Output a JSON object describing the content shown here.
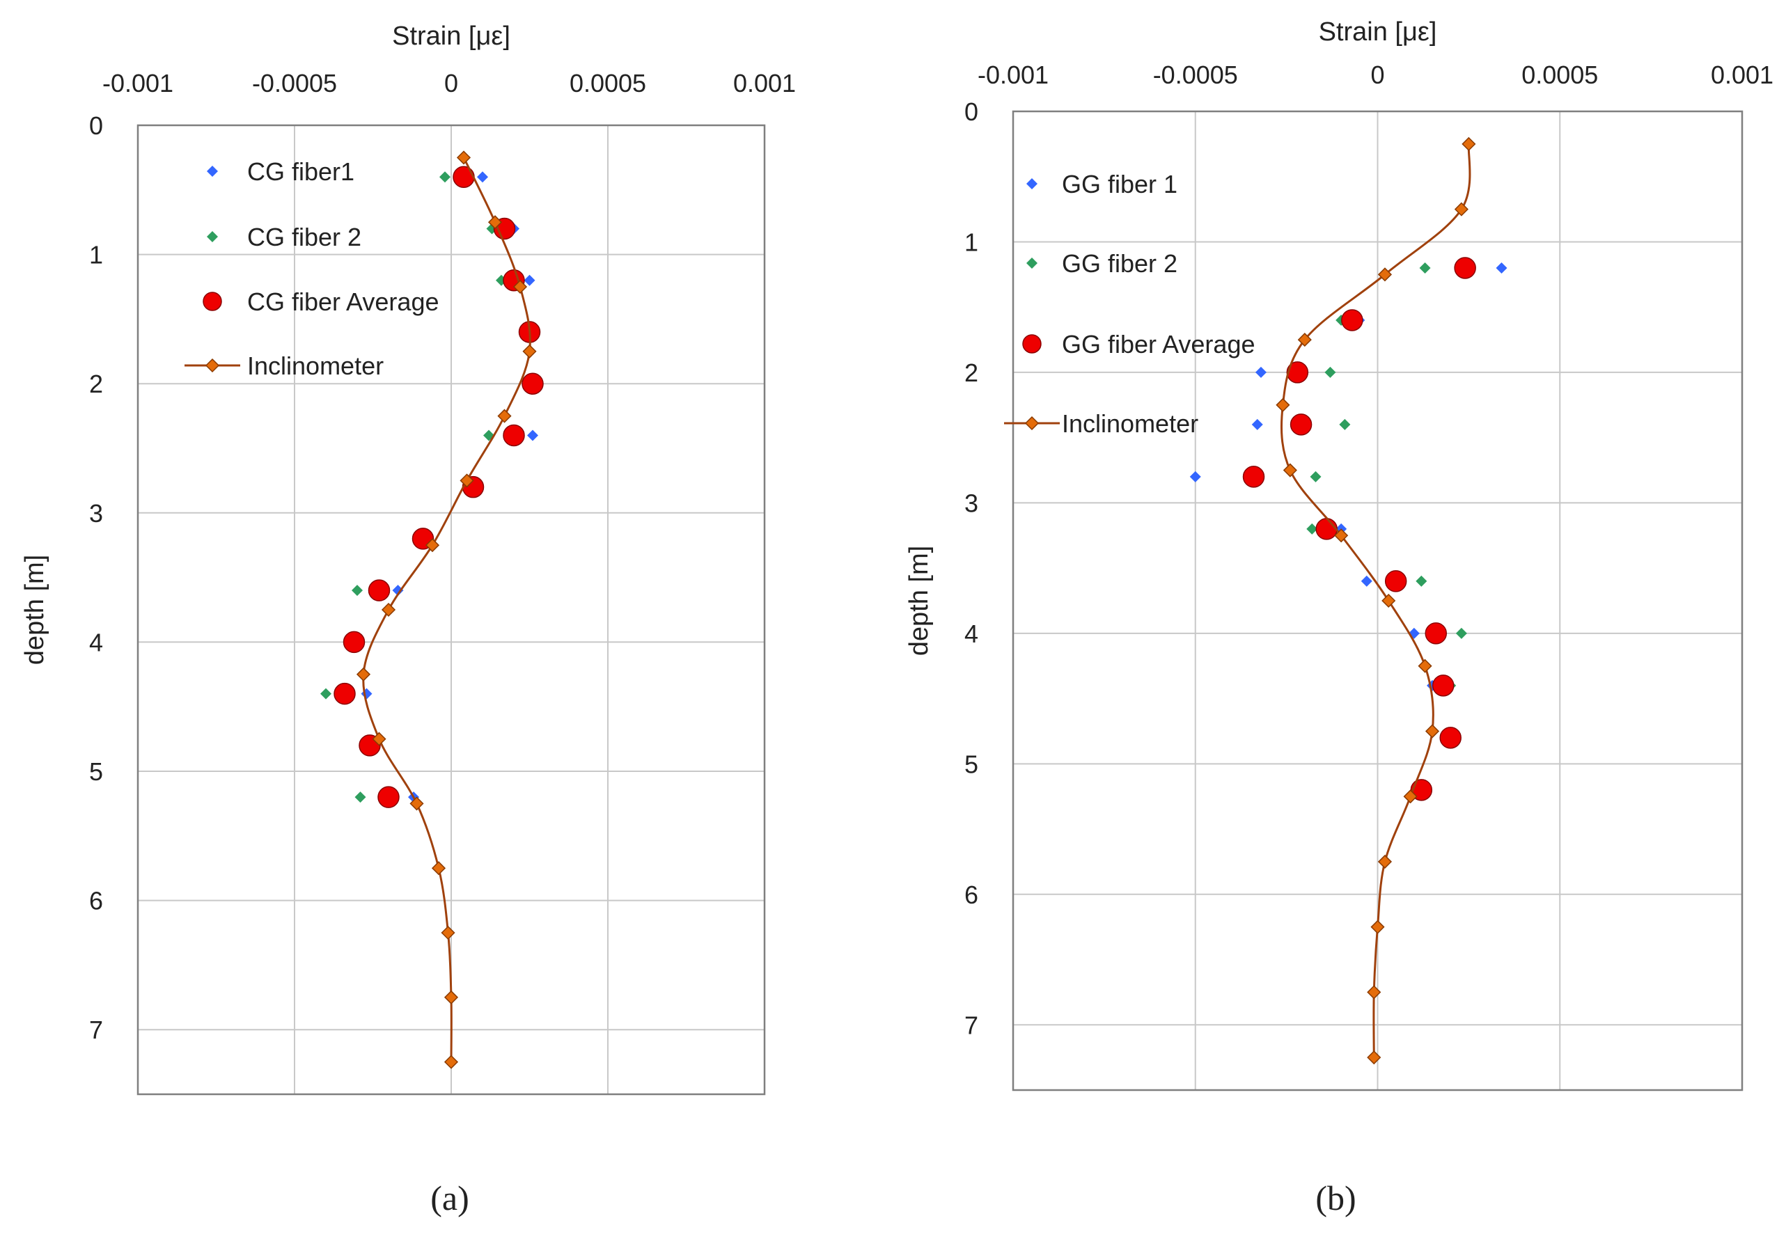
{
  "chart_data": [
    {
      "type": "scatter",
      "panel_label": "(a)",
      "x_axis": {
        "title": "Strain [με]",
        "position": "top",
        "range": [
          -0.001,
          0.001
        ],
        "ticks": [
          -0.001,
          -0.0005,
          0,
          0.0005,
          0.001
        ],
        "tick_labels": [
          "-0.001",
          "-0.0005",
          "0",
          "0.0005",
          "0.001"
        ]
      },
      "y_axis": {
        "title": "depth [m]",
        "reversed": true,
        "range": [
          0,
          7.5
        ],
        "ticks": [
          0,
          1,
          2,
          3,
          4,
          5,
          6,
          7
        ],
        "tick_labels": [
          "0",
          "1",
          "2",
          "3",
          "4",
          "5",
          "6",
          "7"
        ]
      },
      "grid": true,
      "legend_position": "top-left",
      "series": [
        {
          "name": "CG fiber1",
          "marker": "diamond",
          "color": "#3366ff",
          "points": [
            [
              0.0001,
              0.4
            ],
            [
              0.0002,
              0.8
            ],
            [
              0.00025,
              1.2
            ],
            [
              0.00026,
              2.4
            ],
            [
              -0.00017,
              3.6
            ],
            [
              -0.00027,
              4.4
            ],
            [
              -0.00012,
              5.2
            ]
          ]
        },
        {
          "name": "CG fiber 2",
          "marker": "diamond",
          "color": "#2e9e5e",
          "points": [
            [
              -2e-05,
              0.4
            ],
            [
              0.00013,
              0.8
            ],
            [
              0.00016,
              1.2
            ],
            [
              0.00012,
              2.4
            ],
            [
              -0.0003,
              3.6
            ],
            [
              -0.0004,
              4.4
            ],
            [
              -0.00029,
              5.2
            ]
          ]
        },
        {
          "name": "CG fiber Average",
          "marker": "circle",
          "color": "#ee0000",
          "points": [
            [
              4e-05,
              0.4
            ],
            [
              0.00017,
              0.8
            ],
            [
              0.0002,
              1.2
            ],
            [
              0.00025,
              1.6
            ],
            [
              0.00026,
              2.0
            ],
            [
              0.0002,
              2.4
            ],
            [
              7e-05,
              2.8
            ],
            [
              -9e-05,
              3.2
            ],
            [
              -0.00023,
              3.6
            ],
            [
              -0.00031,
              4.0
            ],
            [
              -0.00034,
              4.4
            ],
            [
              -0.00026,
              4.8
            ],
            [
              -0.0002,
              5.2
            ]
          ]
        },
        {
          "name": "Inclinometer",
          "marker": "diamond-line",
          "color": "#e46c0a",
          "line_color": "#a0410d",
          "points": [
            [
              4e-05,
              0.25
            ],
            [
              0.00014,
              0.75
            ],
            [
              0.00022,
              1.25
            ],
            [
              0.00025,
              1.75
            ],
            [
              0.00017,
              2.25
            ],
            [
              5e-05,
              2.75
            ],
            [
              -6e-05,
              3.25
            ],
            [
              -0.0002,
              3.75
            ],
            [
              -0.00028,
              4.25
            ],
            [
              -0.00023,
              4.75
            ],
            [
              -0.00011,
              5.25
            ],
            [
              -4e-05,
              5.75
            ],
            [
              -1e-05,
              6.25
            ],
            [
              0.0,
              6.75
            ],
            [
              0.0,
              7.25
            ]
          ]
        }
      ]
    },
    {
      "type": "scatter",
      "panel_label": "(b)",
      "x_axis": {
        "title": "Strain [με]",
        "position": "top",
        "range": [
          -0.001,
          0.001
        ],
        "ticks": [
          -0.001,
          -0.0005,
          0,
          0.0005,
          0.001
        ],
        "tick_labels": [
          "-0.001",
          "-0.0005",
          "0",
          "0.0005",
          "0.001"
        ]
      },
      "y_axis": {
        "title": "depth  [m]",
        "reversed": true,
        "range": [
          0,
          7.5
        ],
        "ticks": [
          0,
          1,
          2,
          3,
          4,
          5,
          6,
          7
        ],
        "tick_labels": [
          "0",
          "1",
          "2",
          "3",
          "4",
          "5",
          "6",
          "7"
        ]
      },
      "grid": true,
      "legend_position": "top-left",
      "series": [
        {
          "name": "GG fiber 1",
          "marker": "diamond",
          "color": "#3366ff",
          "points": [
            [
              0.00034,
              1.2
            ],
            [
              -5e-05,
              1.6
            ],
            [
              -0.00032,
              2.0
            ],
            [
              -0.00033,
              2.4
            ],
            [
              -0.0005,
              2.8
            ],
            [
              -0.0001,
              3.2
            ],
            [
              -3e-05,
              3.6
            ],
            [
              0.0001,
              4.0
            ],
            [
              0.00015,
              4.4
            ]
          ]
        },
        {
          "name": "GG fiber 2",
          "marker": "diamond",
          "color": "#2e9e5e",
          "points": [
            [
              0.00013,
              1.2
            ],
            [
              -0.0001,
              1.6
            ],
            [
              -0.00013,
              2.0
            ],
            [
              -9e-05,
              2.4
            ],
            [
              -0.00017,
              2.8
            ],
            [
              -0.00018,
              3.2
            ],
            [
              0.00012,
              3.6
            ],
            [
              0.00023,
              4.0
            ],
            [
              0.0002,
              4.4
            ]
          ]
        },
        {
          "name": "GG fiber Average",
          "marker": "circle",
          "color": "#ee0000",
          "points": [
            [
              0.00024,
              1.2
            ],
            [
              -7e-05,
              1.6
            ],
            [
              -0.00022,
              2.0
            ],
            [
              -0.00021,
              2.4
            ],
            [
              -0.00034,
              2.8
            ],
            [
              -0.00014,
              3.2
            ],
            [
              5e-05,
              3.6
            ],
            [
              0.00016,
              4.0
            ],
            [
              0.00018,
              4.4
            ],
            [
              0.0002,
              4.8
            ],
            [
              0.00012,
              5.2
            ]
          ]
        },
        {
          "name": "Inclinometer",
          "marker": "diamond-line",
          "color": "#e46c0a",
          "line_color": "#a0410d",
          "points": [
            [
              0.00025,
              0.25
            ],
            [
              0.00023,
              0.75
            ],
            [
              2e-05,
              1.25
            ],
            [
              -0.0002,
              1.75
            ],
            [
              -0.00026,
              2.25
            ],
            [
              -0.00024,
              2.75
            ],
            [
              -0.0001,
              3.25
            ],
            [
              3e-05,
              3.75
            ],
            [
              0.00013,
              4.25
            ],
            [
              0.00015,
              4.75
            ],
            [
              9e-05,
              5.25
            ],
            [
              2e-05,
              5.75
            ],
            [
              0.0,
              6.25
            ],
            [
              -1e-05,
              6.75
            ],
            [
              -1e-05,
              7.25
            ]
          ]
        }
      ]
    }
  ]
}
